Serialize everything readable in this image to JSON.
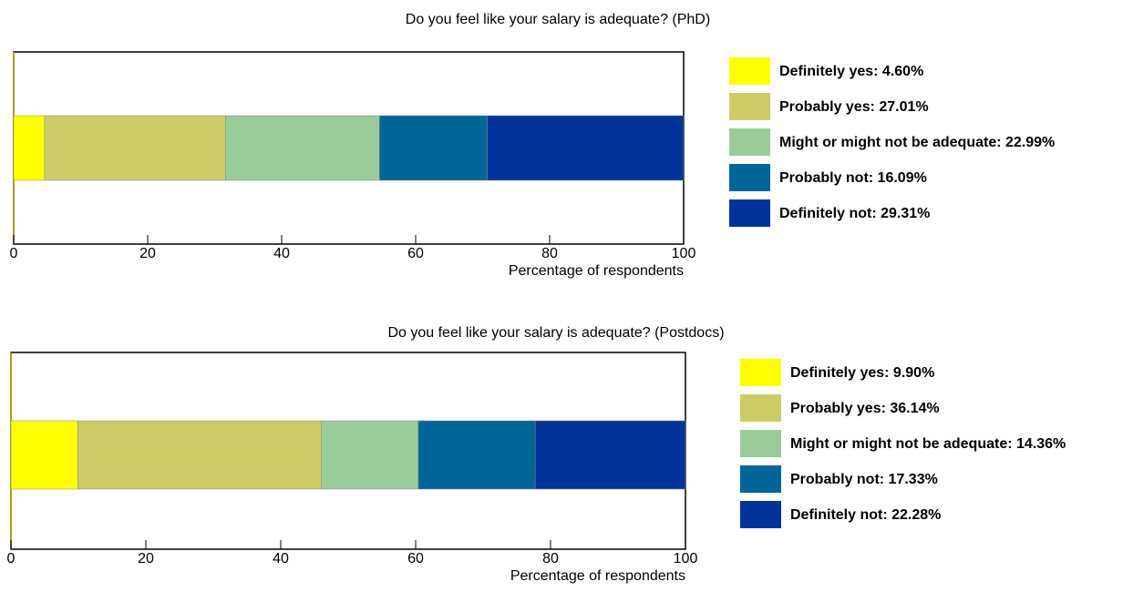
{
  "chart_data": [
    {
      "type": "bar",
      "orientation": "horizontal",
      "stacked": true,
      "title": "Do you feel like your salary is adequate? (PhD)",
      "xlabel": "Percentage of respondents",
      "xlim": [
        0,
        100
      ],
      "xticks": [
        0,
        20,
        40,
        60,
        80,
        100
      ],
      "series": [
        {
          "name": "Definitely yes: 4.60%",
          "color": "#ffff00",
          "values": [
            4.6
          ]
        },
        {
          "name": "Probably yes: 27.01%",
          "color": "#cccc66",
          "values": [
            27.01
          ]
        },
        {
          "name": "Might or might not be adequate: 22.99%",
          "color": "#99cc99",
          "values": [
            22.99
          ]
        },
        {
          "name": "Probably not: 16.09%",
          "color": "#006699",
          "values": [
            16.09
          ]
        },
        {
          "name": "Definitely not: 29.31%",
          "color": "#003399",
          "values": [
            29.31
          ]
        }
      ]
    },
    {
      "type": "bar",
      "orientation": "horizontal",
      "stacked": true,
      "title": "Do you feel like your salary is adequate? (Postdocs)",
      "xlabel": "Percentage of respondents",
      "xlim": [
        0,
        100
      ],
      "xticks": [
        0,
        20,
        40,
        60,
        80,
        100
      ],
      "series": [
        {
          "name": "Definitely yes: 9.90%",
          "color": "#ffff00",
          "values": [
            9.9
          ]
        },
        {
          "name": "Probably yes: 36.14%",
          "color": "#cccc66",
          "values": [
            36.14
          ]
        },
        {
          "name": "Might or might not be adequate: 14.36%",
          "color": "#99cc99",
          "values": [
            14.36
          ]
        },
        {
          "name": "Probably not: 17.33%",
          "color": "#006699",
          "values": [
            17.33
          ]
        },
        {
          "name": "Definitely not: 22.28%",
          "color": "#003399",
          "values": [
            22.28
          ]
        }
      ]
    }
  ]
}
